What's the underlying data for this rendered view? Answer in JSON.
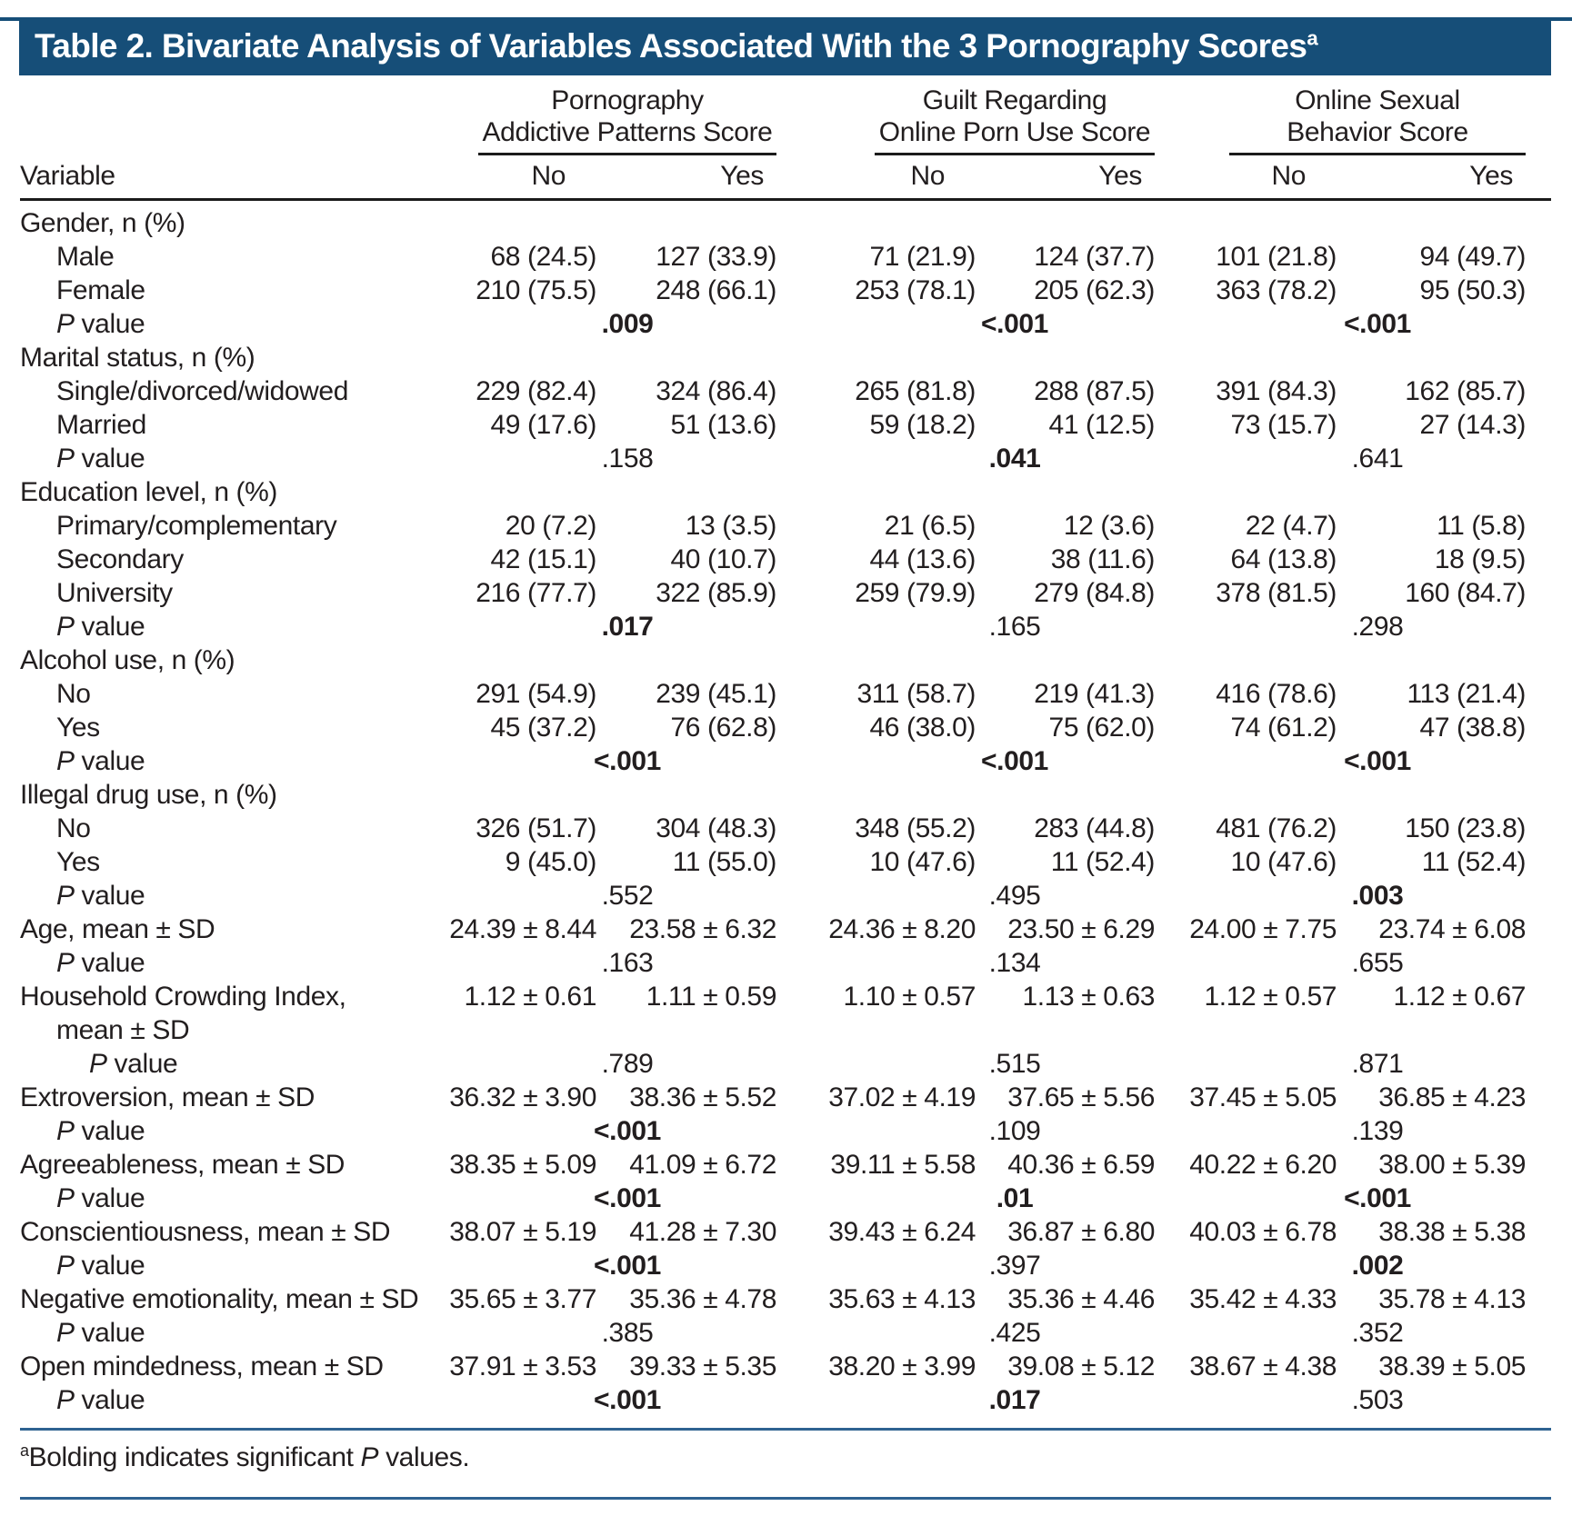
{
  "title": "Table 2. Bivariate Analysis of Variables Associated With the 3 Pornography Scores",
  "title_superscript": "a",
  "colors": {
    "title_band": "#164e78",
    "rule_blue": "#2e6291",
    "rule_dark": "#1b1b1b",
    "text": "#221e1f"
  },
  "column_headers": {
    "variable": "Variable",
    "groups": [
      {
        "line1": "Pornography",
        "line2": "Addictive Patterns Score",
        "no": "No",
        "yes": "Yes"
      },
      {
        "line1": "Guilt Regarding",
        "line2": "Online Porn Use Score",
        "no": "No",
        "yes": "Yes"
      },
      {
        "line1": "Online Sexual",
        "line2": "Behavior Score",
        "no": "No",
        "yes": "Yes"
      }
    ]
  },
  "p_label": {
    "italic": "P",
    "rest": " value"
  },
  "rows": [
    {
      "type": "section",
      "label": "Gender, n (%)"
    },
    {
      "type": "data",
      "indent": 1,
      "label": "Male",
      "values": [
        "68 (24.5)",
        "127 (33.9)",
        "71 (21.9)",
        "124 (37.7)",
        "101 (21.8)",
        "94 (49.7)"
      ]
    },
    {
      "type": "data",
      "indent": 1,
      "label": "Female",
      "values": [
        "210 (75.5)",
        "248 (66.1)",
        "253 (78.1)",
        "205 (62.3)",
        "363 (78.2)",
        "95 (50.3)"
      ]
    },
    {
      "type": "pvalue",
      "indent": 1,
      "values": [
        {
          "text": ".009",
          "bold": true
        },
        {
          "text": "<.001",
          "bold": true
        },
        {
          "text": "<.001",
          "bold": true
        }
      ]
    },
    {
      "type": "section",
      "label": "Marital status, n (%)"
    },
    {
      "type": "data",
      "indent": 1,
      "label": "Single/divorced/widowed",
      "values": [
        "229 (82.4)",
        "324 (86.4)",
        "265 (81.8)",
        "288 (87.5)",
        "391 (84.3)",
        "162 (85.7)"
      ]
    },
    {
      "type": "data",
      "indent": 1,
      "label": "Married",
      "values": [
        "49 (17.6)",
        "51 (13.6)",
        "59 (18.2)",
        "41 (12.5)",
        "73 (15.7)",
        "27 (14.3)"
      ]
    },
    {
      "type": "pvalue",
      "indent": 1,
      "values": [
        {
          "text": ".158",
          "bold": false
        },
        {
          "text": ".041",
          "bold": true
        },
        {
          "text": ".641",
          "bold": false
        }
      ]
    },
    {
      "type": "section",
      "label": "Education level, n (%)"
    },
    {
      "type": "data",
      "indent": 1,
      "label": "Primary/complementary",
      "values": [
        "20 (7.2)",
        "13 (3.5)",
        "21 (6.5)",
        "12 (3.6)",
        "22 (4.7)",
        "11 (5.8)"
      ]
    },
    {
      "type": "data",
      "indent": 1,
      "label": "Secondary",
      "values": [
        "42 (15.1)",
        "40 (10.7)",
        "44 (13.6)",
        "38 (11.6)",
        "64 (13.8)",
        "18 (9.5)"
      ]
    },
    {
      "type": "data",
      "indent": 1,
      "label": "University",
      "values": [
        "216 (77.7)",
        "322 (85.9)",
        "259 (79.9)",
        "279 (84.8)",
        "378 (81.5)",
        "160 (84.7)"
      ]
    },
    {
      "type": "pvalue",
      "indent": 1,
      "values": [
        {
          "text": ".017",
          "bold": true
        },
        {
          "text": ".165",
          "bold": false
        },
        {
          "text": ".298",
          "bold": false
        }
      ]
    },
    {
      "type": "section",
      "label": "Alcohol use, n (%)"
    },
    {
      "type": "data",
      "indent": 1,
      "label": "No",
      "values": [
        "291 (54.9)",
        "239 (45.1)",
        "311 (58.7)",
        "219 (41.3)",
        "416 (78.6)",
        "113 (21.4)"
      ]
    },
    {
      "type": "data",
      "indent": 1,
      "label": "Yes",
      "values": [
        "45 (37.2)",
        "76 (62.8)",
        "46 (38.0)",
        "75 (62.0)",
        "74 (61.2)",
        "47 (38.8)"
      ]
    },
    {
      "type": "pvalue",
      "indent": 1,
      "values": [
        {
          "text": "<.001",
          "bold": true
        },
        {
          "text": "<.001",
          "bold": true
        },
        {
          "text": "<.001",
          "bold": true
        }
      ]
    },
    {
      "type": "section",
      "label": "Illegal drug use, n (%)"
    },
    {
      "type": "data",
      "indent": 1,
      "label": "No",
      "values": [
        "326 (51.7)",
        "304 (48.3)",
        "348 (55.2)",
        "283 (44.8)",
        "481 (76.2)",
        "150 (23.8)"
      ]
    },
    {
      "type": "data",
      "indent": 1,
      "label": "Yes",
      "values": [
        "9 (45.0)",
        "11 (55.0)",
        "10 (47.6)",
        "11 (52.4)",
        "10 (47.6)",
        "11 (52.4)"
      ]
    },
    {
      "type": "pvalue",
      "indent": 1,
      "values": [
        {
          "text": ".552",
          "bold": false
        },
        {
          "text": ".495",
          "bold": false
        },
        {
          "text": ".003",
          "bold": true
        }
      ]
    },
    {
      "type": "measure",
      "indent": 0,
      "label": "Age, mean ± SD",
      "values": [
        "24.39 ± 8.44",
        "23.58 ± 6.32",
        "24.36 ± 8.20",
        "23.50 ± 6.29",
        "24.00 ± 7.75",
        "23.74 ± 6.08"
      ]
    },
    {
      "type": "pvalue",
      "indent": 1,
      "values": [
        {
          "text": ".163",
          "bold": false
        },
        {
          "text": ".134",
          "bold": false
        },
        {
          "text": ".655",
          "bold": false
        }
      ]
    },
    {
      "type": "measure",
      "indent": 0,
      "label": "Household Crowding Index,",
      "values": [
        "1.12 ± 0.61",
        "1.11 ± 0.59",
        "1.10 ± 0.57",
        "1.13 ± 0.63",
        "1.12 ± 0.57",
        "1.12 ± 0.67"
      ]
    },
    {
      "type": "cont",
      "indent": 1,
      "label": "mean ± SD"
    },
    {
      "type": "pvalue",
      "indent": 2,
      "values": [
        {
          "text": ".789",
          "bold": false
        },
        {
          "text": ".515",
          "bold": false
        },
        {
          "text": ".871",
          "bold": false
        }
      ]
    },
    {
      "type": "measure",
      "indent": 0,
      "label": "Extroversion, mean ± SD",
      "values": [
        "36.32 ± 3.90",
        "38.36 ± 5.52",
        "37.02 ± 4.19",
        "37.65 ± 5.56",
        "37.45 ± 5.05",
        "36.85 ± 4.23"
      ]
    },
    {
      "type": "pvalue",
      "indent": 1,
      "values": [
        {
          "text": "<.001",
          "bold": true
        },
        {
          "text": ".109",
          "bold": false
        },
        {
          "text": ".139",
          "bold": false
        }
      ]
    },
    {
      "type": "measure",
      "indent": 0,
      "label": "Agreeableness, mean ± SD",
      "values": [
        "38.35 ± 5.09",
        "41.09 ± 6.72",
        "39.11 ± 5.58",
        "40.36 ± 6.59",
        "40.22 ± 6.20",
        "38.00 ± 5.39"
      ]
    },
    {
      "type": "pvalue",
      "indent": 1,
      "values": [
        {
          "text": "<.001",
          "bold": true
        },
        {
          "text": ".01",
          "bold": true
        },
        {
          "text": "<.001",
          "bold": true
        }
      ]
    },
    {
      "type": "measure",
      "indent": 0,
      "label": "Conscientiousness, mean ± SD",
      "values": [
        "38.07 ± 5.19",
        "41.28 ± 7.30",
        "39.43 ± 6.24",
        "36.87 ± 6.80",
        "40.03 ± 6.78",
        "38.38 ± 5.38"
      ]
    },
    {
      "type": "pvalue",
      "indent": 1,
      "values": [
        {
          "text": "<.001",
          "bold": true
        },
        {
          "text": ".397",
          "bold": false
        },
        {
          "text": ".002",
          "bold": true
        }
      ]
    },
    {
      "type": "measure",
      "indent": 0,
      "label": "Negative emotionality, mean ± SD",
      "values": [
        "35.65 ± 3.77",
        "35.36 ± 4.78",
        "35.63 ± 4.13",
        "35.36 ± 4.46",
        "35.42 ± 4.33",
        "35.78 ± 4.13"
      ]
    },
    {
      "type": "pvalue",
      "indent": 1,
      "values": [
        {
          "text": ".385",
          "bold": false
        },
        {
          "text": ".425",
          "bold": false
        },
        {
          "text": ".352",
          "bold": false
        }
      ]
    },
    {
      "type": "measure",
      "indent": 0,
      "label": "Open mindedness, mean ± SD",
      "values": [
        "37.91 ± 3.53",
        "39.33 ± 5.35",
        "38.20 ± 3.99",
        "39.08 ± 5.12",
        "38.67 ± 4.38",
        "38.39 ± 5.05"
      ]
    },
    {
      "type": "pvalue",
      "indent": 1,
      "values": [
        {
          "text": "<.001",
          "bold": true
        },
        {
          "text": ".017",
          "bold": true
        },
        {
          "text": ".503",
          "bold": false
        }
      ]
    }
  ],
  "footnote": {
    "superscript": "a",
    "text_before_p": "Bolding indicates significant ",
    "p_italic": "P",
    "text_after_p": " values."
  }
}
